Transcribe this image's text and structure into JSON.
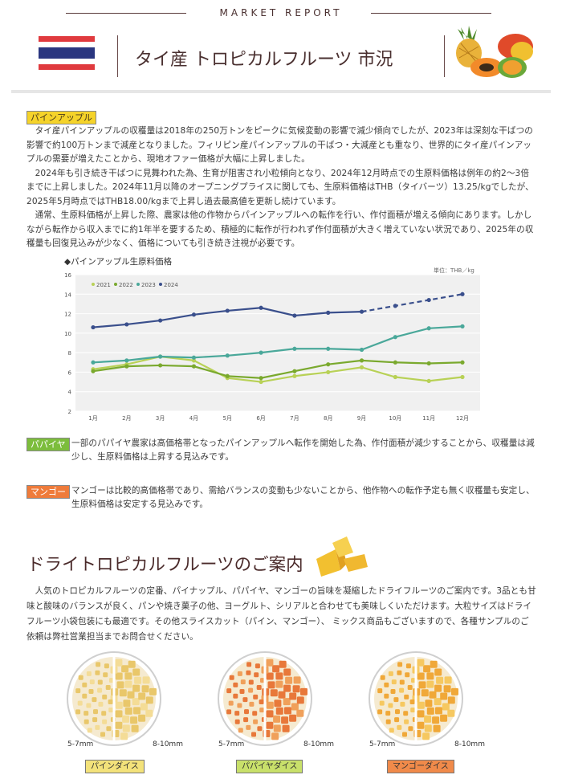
{
  "header": {
    "kicker": "MARKET REPORT",
    "title": "タイ産 トロピカルフルーツ 市況"
  },
  "pineapple": {
    "tag": "パインアップル",
    "paragraphs": [
      "タイ産パインアップルの収穫量は2018年の250万トンをピークに気候変動の影響で減少傾向でしたが、2023年は深刻な干ばつの影響で約100万トンまで減産となりました。フィリピン産パインアップルの干ばつ・大減産とも重なり、世界的にタイ産パインアップルの需要が増えたことから、現地オファー価格が大幅に上昇しました。",
      "2024年も引き続き干ばつに見舞われた為、生育が阻害され小粒傾向となり、2024年12月時点での生原料価格は例年の約2～3倍までに上昇しました。2024年11月以降のオープニングプライスに関しても、生原料価格はTHB（タイバーツ）13.25/kgでしたが、2025年5月時点ではTHB18.00/kgまで上昇し過去最高値を更新し続けています。",
      "通常、生原料価格が上昇した際、農家は他の作物からパインアップルへの転作を行い、作付面積が増える傾向にあります。しかしながら転作から収入までに約1年半を要するため、積極的に転作が行われず作付面積が大きく増えていない状況であり、2025年の収穫量も回復見込みが少なく、価格についても引き続き注視が必要です。"
    ]
  },
  "chart_title": "◆パインアップル生原料価格",
  "chart_data": {
    "type": "line",
    "unit": "単位：THB／kg",
    "categories": [
      "1月",
      "2月",
      "3月",
      "4月",
      "5月",
      "6月",
      "7月",
      "8月",
      "9月",
      "10月",
      "11月",
      "12月"
    ],
    "ylim": [
      2,
      16
    ],
    "yticks": [
      "2",
      "4",
      "6",
      "8",
      "10",
      "12",
      "14",
      "16"
    ],
    "series": [
      {
        "name": "2021",
        "color": "#b8d156",
        "values": [
          6.3,
          6.8,
          7.6,
          7.2,
          5.4,
          5.0,
          5.6,
          6.0,
          6.5,
          5.5,
          5.1,
          5.5
        ]
      },
      {
        "name": "2022",
        "color": "#7aa92e",
        "values": [
          6.1,
          6.6,
          6.7,
          6.6,
          5.6,
          5.4,
          6.1,
          6.8,
          7.2,
          7.0,
          6.9,
          7.0
        ]
      },
      {
        "name": "2023",
        "color": "#4aa89a",
        "values": [
          7.0,
          7.2,
          7.6,
          7.5,
          7.7,
          8.0,
          8.4,
          8.4,
          8.3,
          9.6,
          10.5,
          10.7
        ]
      },
      {
        "name": "2024",
        "color": "#3a4f8c",
        "values": [
          10.6,
          10.9,
          11.3,
          11.9,
          12.3,
          12.6,
          11.8,
          12.1,
          12.2,
          12.8,
          13.4,
          14.0
        ],
        "dashed_from_index": 8
      }
    ],
    "grid": true
  },
  "papaya": {
    "tag": "パパイヤ",
    "text": "一部のパパイヤ農家は高価格帯となったパインアップルへ転作を開始した為、作付面積が減少することから、収穫量は減少し、生原料価格は上昇する見込みです。"
  },
  "mango": {
    "tag": "マンゴー",
    "text": "マンゴーは比較的高価格帯であり、需給バランスの変動も少ないことから、他作物への転作予定も無く収穫量も安定し、生原料価格は安定する見込みです。"
  },
  "dried": {
    "heading": "ドライトロピカルフルーツのご案内",
    "text": "人気のトロピカルフルーツの定番、パイナップル、パパイヤ、マンゴーの旨味を凝縮したドライフルーツのご案内です。3品とも甘味と酸味のバランスが良く、パンや焼き菓子の他、ヨーグルト、シリアルと合わせても美味しくいただけます。大粒サイズはドライフルーツ小袋包装にも最適です。その他スライスカット（パイン、マンゴー）、 ミックス商品もございますので、各種サンプルのご依頼は弊社営業担当までお問合せください。",
    "products": [
      {
        "small": "5-7mm",
        "large": "8-10mm",
        "label": "パインダイス",
        "color": "#f3e27a",
        "piece": "#e9c76a",
        "piece2": "#f4dc96"
      },
      {
        "small": "5-7mm",
        "large": "8-10mm",
        "label": "パパイヤダイス",
        "color": "#c8e06a",
        "piece": "#e8783a",
        "piece2": "#f0a05a"
      },
      {
        "small": "5-7mm",
        "large": "8-10mm",
        "label": "マンゴーダイス",
        "color": "#f08a4a",
        "piece": "#f0a838",
        "piece2": "#f6c860"
      }
    ]
  }
}
